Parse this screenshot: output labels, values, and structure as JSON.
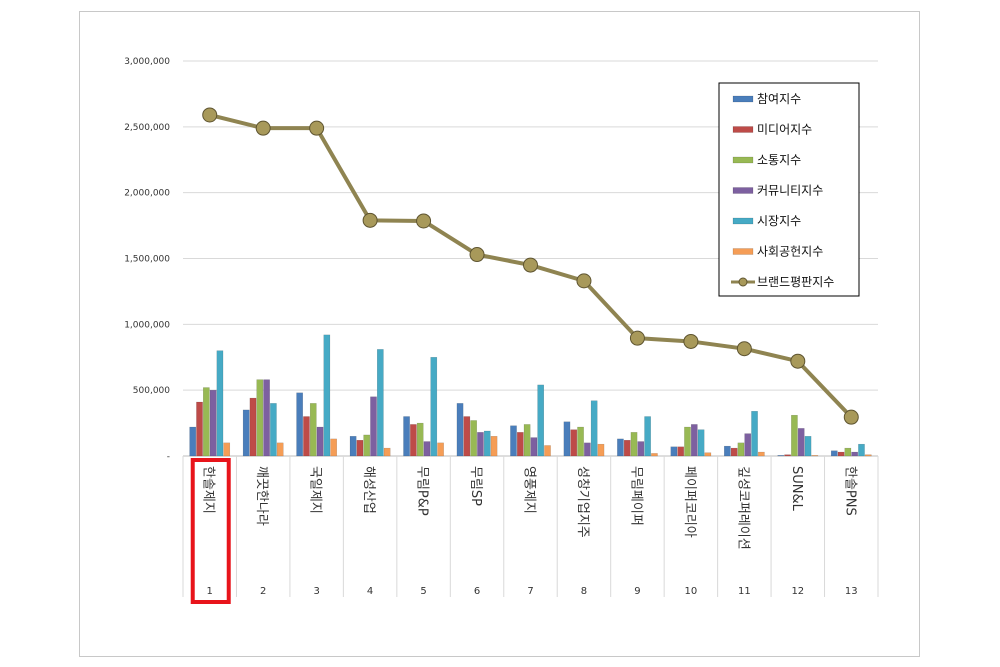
{
  "chart_data": {
    "type": "bar",
    "ylim": [
      0,
      3000000
    ],
    "yticks": [
      "-",
      "500,000",
      "1,000,000",
      "1,500,000",
      "2,000,000",
      "2,500,000",
      "3,000,000"
    ],
    "ytick_values": [
      0,
      500000,
      1000000,
      1500000,
      2000000,
      2500000,
      3000000
    ],
    "categories": [
      "한솔제지",
      "깨끗한나라",
      "국일제지",
      "해성산업",
      "무림P&P",
      "무림SP",
      "영풍제지",
      "성창기업지주",
      "무림페이퍼",
      "페이퍼코리아",
      "깊성코퍼레이션",
      "SUN&L",
      "한솔PNS"
    ],
    "category_numbers": [
      "1",
      "2",
      "3",
      "4",
      "5",
      "6",
      "7",
      "8",
      "9",
      "10",
      "11",
      "12",
      "13"
    ],
    "highlighted_index": 0,
    "series": [
      {
        "name": "참여지수",
        "color": "#4a7ebb",
        "values": [
          220000,
          350000,
          480000,
          150000,
          300000,
          400000,
          230000,
          260000,
          130000,
          70000,
          75000,
          5000,
          40000
        ]
      },
      {
        "name": "미디어지수",
        "color": "#be4b48",
        "values": [
          410000,
          440000,
          300000,
          120000,
          240000,
          300000,
          180000,
          200000,
          120000,
          70000,
          60000,
          10000,
          30000
        ]
      },
      {
        "name": "소통지수",
        "color": "#98b954",
        "values": [
          520000,
          580000,
          400000,
          160000,
          250000,
          270000,
          240000,
          220000,
          180000,
          220000,
          100000,
          310000,
          60000
        ]
      },
      {
        "name": "커뮤니티지수",
        "color": "#7d60a0",
        "values": [
          500000,
          580000,
          220000,
          450000,
          110000,
          180000,
          140000,
          100000,
          110000,
          240000,
          170000,
          210000,
          30000
        ]
      },
      {
        "name": "시장지수",
        "color": "#46aac5",
        "values": [
          800000,
          400000,
          920000,
          810000,
          750000,
          190000,
          540000,
          420000,
          300000,
          200000,
          340000,
          150000,
          90000
        ]
      },
      {
        "name": "사회공헌지수",
        "color": "#f59d56",
        "values": [
          100000,
          100000,
          130000,
          60000,
          100000,
          150000,
          80000,
          90000,
          20000,
          25000,
          30000,
          5000,
          10000
        ]
      }
    ],
    "line_series": {
      "name": "브랜드평판지수",
      "color": "#8f8451",
      "values": [
        2590000,
        2490000,
        2490000,
        1790000,
        1785000,
        1530000,
        1450000,
        1330000,
        895000,
        870000,
        815000,
        720000,
        295000
      ]
    },
    "legend_position": "top-right"
  }
}
